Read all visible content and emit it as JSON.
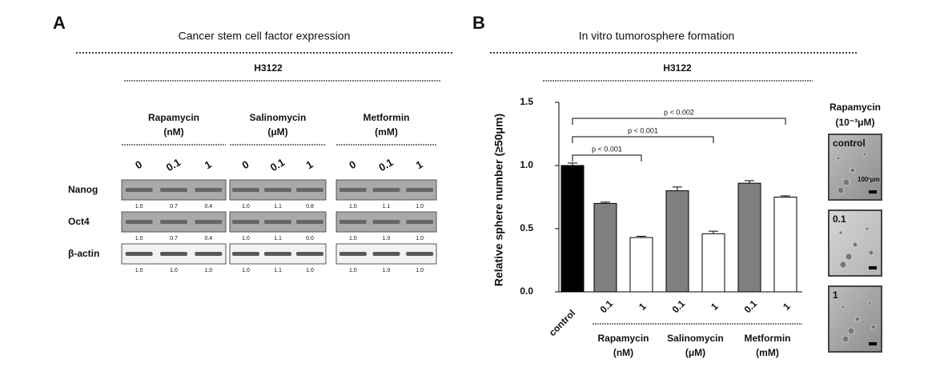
{
  "panel_a": {
    "label": "A",
    "title": "Cancer stem cell factor expression",
    "cell_line": "H3122",
    "groups": [
      {
        "name": "Rapamycin",
        "unit": "(nM)",
        "doses": [
          "0",
          "0.1",
          "1"
        ]
      },
      {
        "name": "Salinomycin",
        "unit": "(μM)",
        "doses": [
          "0",
          "0.1",
          "1"
        ]
      },
      {
        "name": "Metformin",
        "unit": "(mM)",
        "doses": [
          "0",
          "0.1",
          "1"
        ]
      }
    ],
    "rows": [
      {
        "name": "Nanog",
        "quant": [
          [
            "1.0",
            "0.7",
            "0.4"
          ],
          [
            "1.0",
            "1.1",
            "0.8"
          ],
          [
            "1.0",
            "1.1",
            "1.0"
          ]
        ]
      },
      {
        "name": "Oct4",
        "quant": [
          [
            "1.0",
            "0.7",
            "0.4"
          ],
          [
            "1.0",
            "1.1",
            "0.0"
          ],
          [
            "1.0",
            "1.0",
            "1.0"
          ]
        ]
      },
      {
        "name": "β-actin",
        "quant": [
          [
            "1.0",
            "1.0",
            "1.0"
          ],
          [
            "1.0",
            "1.1",
            "1.0"
          ],
          [
            "1.0",
            "1.0",
            "1.0"
          ]
        ]
      }
    ]
  },
  "chart_data": {
    "type": "bar",
    "panel_label": "B",
    "title": "In vitro tumorosphere formation",
    "subtitle": "H3122",
    "y_label": "Relative sphere number (≥50μm)",
    "categories": [
      "control",
      "0.1",
      "1",
      "0.1",
      "1",
      "0.1",
      "1"
    ],
    "values": [
      1.0,
      0.7,
      0.43,
      0.8,
      0.46,
      0.86,
      0.75
    ],
    "errors": [
      0.02,
      0.01,
      0.01,
      0.03,
      0.02,
      0.02,
      0.01
    ],
    "colors": [
      "#000000",
      "#808080",
      "#ffffff",
      "#808080",
      "#ffffff",
      "#808080",
      "#ffffff"
    ],
    "groups": [
      {
        "name": "Rapamycin",
        "unit": "(nM)"
      },
      {
        "name": "Salinomycin",
        "unit": "(μM)"
      },
      {
        "name": "Metformin",
        "unit": "(mM)"
      }
    ],
    "ylim": [
      0,
      1.5
    ],
    "yticks": [
      {
        "value": 0,
        "label": "0.0"
      },
      {
        "value": 0.5,
        "label": "0.5"
      },
      {
        "value": 1,
        "label": "1.0"
      },
      {
        "value": 1.5,
        "label": "1.5"
      }
    ],
    "annotations": [
      "p < 0.001",
      "p < 0.001",
      "p < 0.002"
    ],
    "images": {
      "title": "Rapamycin",
      "unit": "(10⁻³μM)",
      "labels": [
        "control",
        "0.1",
        "1"
      ],
      "scale": "100 μm"
    }
  }
}
